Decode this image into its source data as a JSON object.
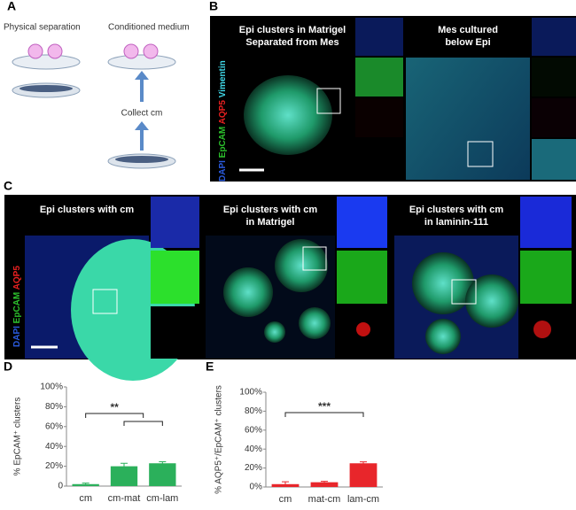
{
  "panel_a": {
    "letter": "A",
    "physical_separation": "Physical separation",
    "conditioned_medium": "Conditioned medium",
    "collect": "Collect cm"
  },
  "panel_b": {
    "letter": "B",
    "stains": [
      "DAPI",
      "EpCAM",
      "AQP5",
      "Vimentin"
    ],
    "left_title": "Epi clusters in Matrigel Separated from Mes",
    "right_title": "Mes cultured below Epi"
  },
  "panel_c": {
    "letter": "C",
    "stains": [
      "DAPI",
      "EpCAM",
      "AQP5"
    ],
    "titles": [
      "Epi clusters with cm",
      "Epi clusters with cm in Matrigel",
      "Epi clusters with cm in laminin-111"
    ]
  },
  "chart_data": [
    {
      "type": "bar",
      "letter": "D",
      "y_label": "% EpCAM⁺ clusters",
      "categories": [
        "cm",
        "cm-mat",
        "cm-lam"
      ],
      "values": [
        2,
        20,
        23
      ],
      "errors": [
        1,
        3,
        1.5
      ],
      "color": "#2bb05b",
      "ylim": [
        0,
        100
      ],
      "yticks": [
        0,
        {
          "value": 20,
          "label": "20%"
        },
        {
          "value": 40,
          "label": "40%"
        },
        {
          "value": 60,
          "label": "60%"
        },
        {
          "value": 80,
          "label": "80%"
        },
        {
          "value": 100,
          "label": "100%"
        }
      ],
      "annotation": "**"
    },
    {
      "type": "bar",
      "letter": "E",
      "y_label": "% AQP5⁺/EpCAM⁺ clusters",
      "categories": [
        "cm",
        "mat-cm",
        "lam-cm"
      ],
      "values": [
        3,
        5,
        25
      ],
      "errors": [
        2.5,
        1,
        1.5
      ],
      "color": "#e8262b",
      "ylim": [
        0,
        100
      ],
      "yticks": [
        {
          "value": 0,
          "label": "0%"
        },
        {
          "value": 20,
          "label": "20%"
        },
        {
          "value": 40,
          "label": "40%"
        },
        {
          "value": 60,
          "label": "60%"
        },
        {
          "value": 80,
          "label": "80%"
        },
        {
          "value": 100,
          "label": "100%"
        }
      ],
      "annotation": "***"
    }
  ]
}
